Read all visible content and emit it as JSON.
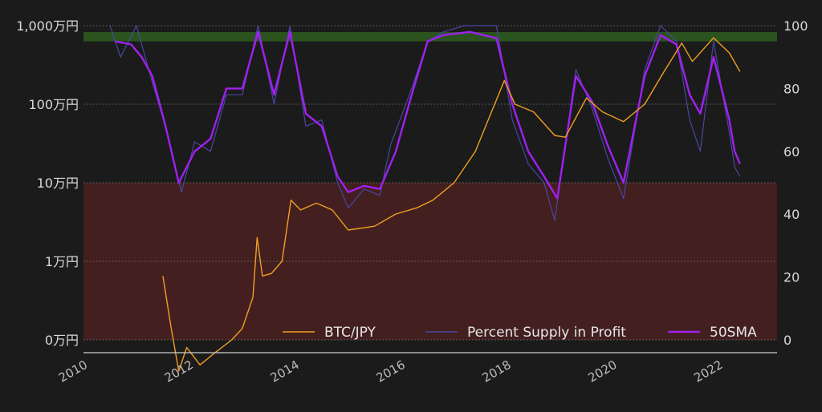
{
  "chart_data": {
    "type": "line",
    "title": "",
    "x_range": [
      2010,
      2023.1
    ],
    "x_ticks": [
      "2010",
      "2012",
      "2014",
      "2016",
      "2018",
      "2020",
      "2022"
    ],
    "y_left": {
      "scale": "log",
      "range_jpy": [
        1000,
        10000000
      ],
      "ticks": [
        {
          "value": 10000000,
          "label": "1,000万円"
        },
        {
          "value": 1000000,
          "label": "100万円"
        },
        {
          "value": 100000,
          "label": "10万円"
        },
        {
          "value": 10000,
          "label": "1万円"
        },
        {
          "value": 1000,
          "label": "0万円"
        }
      ]
    },
    "y_right": {
      "scale": "linear",
      "range": [
        0,
        100
      ],
      "ticks": [
        "0",
        "20",
        "40",
        "60",
        "80",
        "100"
      ]
    },
    "bands": [
      {
        "name": "high-zone",
        "axis": "right",
        "from": 95,
        "to": 100,
        "color": "#2e5d1e"
      },
      {
        "name": "low-zone",
        "axis": "right",
        "from": 0,
        "to": 50,
        "color": "#4a2020"
      }
    ],
    "grid": true,
    "legend": {
      "placement": "bottom-right",
      "entries": [
        {
          "label": "BTC/JPY",
          "color": "#f0a020"
        },
        {
          "label": "Percent Supply in Profit",
          "color": "#4a4aa8"
        },
        {
          "label": "50SMA",
          "color": "#a020f0"
        }
      ]
    },
    "series": [
      {
        "name": "BTC/JPY",
        "axis": "left",
        "color": "#f0a020",
        "points": [
          [
            2011.5,
            6500
          ],
          [
            2011.65,
            1500
          ],
          [
            2011.8,
            400
          ],
          [
            2011.95,
            800
          ],
          [
            2012.2,
            480
          ],
          [
            2012.5,
            700
          ],
          [
            2012.8,
            1000
          ],
          [
            2013.0,
            1400
          ],
          [
            2013.2,
            3500
          ],
          [
            2013.28,
            20000
          ],
          [
            2013.38,
            6500
          ],
          [
            2013.55,
            7000
          ],
          [
            2013.75,
            10000
          ],
          [
            2013.92,
            60000
          ],
          [
            2014.1,
            45000
          ],
          [
            2014.4,
            55000
          ],
          [
            2014.7,
            45000
          ],
          [
            2015.0,
            25000
          ],
          [
            2015.5,
            28000
          ],
          [
            2015.9,
            40000
          ],
          [
            2016.3,
            48000
          ],
          [
            2016.6,
            60000
          ],
          [
            2017.0,
            100000
          ],
          [
            2017.4,
            250000
          ],
          [
            2017.95,
            2000000
          ],
          [
            2018.15,
            1000000
          ],
          [
            2018.5,
            800000
          ],
          [
            2018.9,
            400000
          ],
          [
            2019.1,
            380000
          ],
          [
            2019.5,
            1200000
          ],
          [
            2019.8,
            800000
          ],
          [
            2020.2,
            600000
          ],
          [
            2020.6,
            1000000
          ],
          [
            2020.95,
            2500000
          ],
          [
            2021.3,
            6000000
          ],
          [
            2021.5,
            3500000
          ],
          [
            2021.9,
            7000000
          ],
          [
            2022.2,
            4500000
          ],
          [
            2022.4,
            2600000
          ]
        ]
      },
      {
        "name": "Percent Supply in Profit",
        "axis": "right",
        "color": "#4a4aa8",
        "points": [
          [
            2010.5,
            100
          ],
          [
            2010.7,
            90
          ],
          [
            2011.0,
            100
          ],
          [
            2011.3,
            82
          ],
          [
            2011.6,
            65
          ],
          [
            2011.85,
            47
          ],
          [
            2012.1,
            63
          ],
          [
            2012.4,
            60
          ],
          [
            2012.7,
            78
          ],
          [
            2013.0,
            78
          ],
          [
            2013.3,
            100
          ],
          [
            2013.6,
            75
          ],
          [
            2013.9,
            100
          ],
          [
            2014.2,
            68
          ],
          [
            2014.5,
            70
          ],
          [
            2014.8,
            50
          ],
          [
            2015.0,
            42
          ],
          [
            2015.3,
            48
          ],
          [
            2015.6,
            46
          ],
          [
            2015.8,
            62
          ],
          [
            2016.2,
            80
          ],
          [
            2016.5,
            95
          ],
          [
            2016.8,
            98
          ],
          [
            2017.2,
            100
          ],
          [
            2017.8,
            100
          ],
          [
            2018.1,
            70
          ],
          [
            2018.4,
            56
          ],
          [
            2018.7,
            50
          ],
          [
            2018.9,
            38
          ],
          [
            2019.3,
            86
          ],
          [
            2019.6,
            74
          ],
          [
            2019.9,
            58
          ],
          [
            2020.2,
            45
          ],
          [
            2020.6,
            86
          ],
          [
            2020.9,
            100
          ],
          [
            2021.2,
            95
          ],
          [
            2021.45,
            70
          ],
          [
            2021.65,
            60
          ],
          [
            2021.9,
            95
          ],
          [
            2022.2,
            66
          ],
          [
            2022.3,
            55
          ],
          [
            2022.4,
            52
          ]
        ]
      },
      {
        "name": "50SMA",
        "axis": "right",
        "color": "#a020f0",
        "points": [
          [
            2010.6,
            95
          ],
          [
            2010.9,
            94
          ],
          [
            2011.1,
            90
          ],
          [
            2011.3,
            84
          ],
          [
            2011.55,
            68
          ],
          [
            2011.8,
            50
          ],
          [
            2012.1,
            60
          ],
          [
            2012.4,
            64
          ],
          [
            2012.7,
            80
          ],
          [
            2013.0,
            80
          ],
          [
            2013.3,
            98
          ],
          [
            2013.6,
            78
          ],
          [
            2013.9,
            98
          ],
          [
            2014.2,
            72
          ],
          [
            2014.5,
            68
          ],
          [
            2014.8,
            52
          ],
          [
            2015.0,
            47
          ],
          [
            2015.3,
            49
          ],
          [
            2015.6,
            48
          ],
          [
            2015.9,
            60
          ],
          [
            2016.2,
            78
          ],
          [
            2016.5,
            95
          ],
          [
            2016.8,
            97
          ],
          [
            2017.3,
            98
          ],
          [
            2017.8,
            96
          ],
          [
            2018.1,
            75
          ],
          [
            2018.4,
            60
          ],
          [
            2018.7,
            52
          ],
          [
            2018.95,
            45
          ],
          [
            2019.3,
            84
          ],
          [
            2019.6,
            76
          ],
          [
            2019.9,
            62
          ],
          [
            2020.2,
            50
          ],
          [
            2020.6,
            84
          ],
          [
            2020.9,
            97
          ],
          [
            2021.2,
            94
          ],
          [
            2021.45,
            78
          ],
          [
            2021.65,
            72
          ],
          [
            2021.9,
            90
          ],
          [
            2022.2,
            70
          ],
          [
            2022.3,
            60
          ],
          [
            2022.4,
            56
          ]
        ]
      }
    ]
  }
}
